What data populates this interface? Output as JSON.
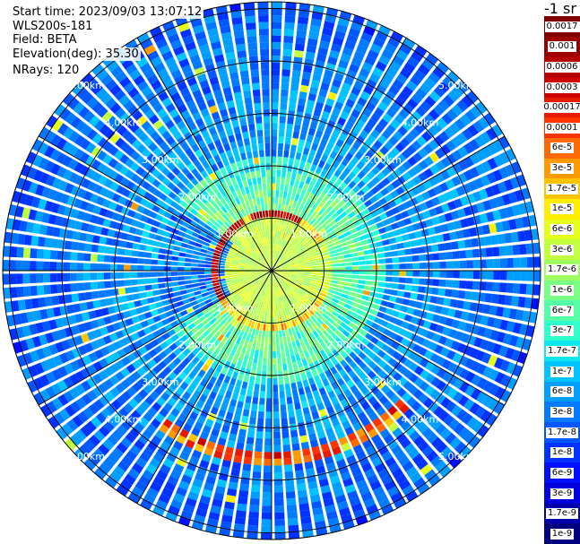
{
  "header": {
    "start_time": "Start time: 2023/09/03 13:07:12",
    "instrument": "WLS200s-181",
    "field": "Field: BETA",
    "elevation": "Elevation(deg): 35.30",
    "nrays": "NRays: 120"
  },
  "colorbar": {
    "units_label": "-1 sr",
    "levels": [
      {
        "label": "0.0017",
        "color": "#800000"
      },
      {
        "label": "0.001",
        "color": "#9a0000"
      },
      {
        "label": "0.0006",
        "color": "#b30000"
      },
      {
        "label": "0.0003",
        "color": "#cc0000"
      },
      {
        "label": "0.00017",
        "color": "#e51a00"
      },
      {
        "label": "0.0001",
        "color": "#ff3300"
      },
      {
        "label": "6e-5",
        "color": "#ff6a00"
      },
      {
        "label": "3e-5",
        "color": "#ff9900"
      },
      {
        "label": "1.7e-5",
        "color": "#ffc400"
      },
      {
        "label": "1e-5",
        "color": "#ffee00"
      },
      {
        "label": "6e-6",
        "color": "#e6ff1a"
      },
      {
        "label": "3e-6",
        "color": "#c2ff3c"
      },
      {
        "label": "1.7e-6",
        "color": "#9dff60"
      },
      {
        "label": "1e-6",
        "color": "#79ff84"
      },
      {
        "label": "6e-7",
        "color": "#55ffa8"
      },
      {
        "label": "3e-7",
        "color": "#31ffcc"
      },
      {
        "label": "1.7e-7",
        "color": "#0de8f0"
      },
      {
        "label": "1e-7",
        "color": "#00c4ff"
      },
      {
        "label": "6e-8",
        "color": "#009fff"
      },
      {
        "label": "3e-8",
        "color": "#007bff"
      },
      {
        "label": "1.7e-8",
        "color": "#0057ff"
      },
      {
        "label": "1e-8",
        "color": "#0033ff"
      },
      {
        "label": "6e-9",
        "color": "#000fff"
      },
      {
        "label": "3e-9",
        "color": "#0000dd"
      },
      {
        "label": "1.7e-9",
        "color": "#0000aa"
      },
      {
        "label": "1e-9",
        "color": "#000080"
      }
    ]
  },
  "chart_data": {
    "type": "heatmap",
    "projection": "polar PPI scan",
    "scale": "log",
    "nrays": 120,
    "range_rings_km": [
      1,
      2,
      3,
      4,
      5
    ],
    "range_ring_labels": [
      "1.00km",
      "2.00km",
      "3.00km",
      "4.00km",
      "5.00km"
    ],
    "features": [
      {
        "description": "boundary-layer top aerosol ring",
        "range_km": 1.1,
        "max_value": "0.0017"
      },
      {
        "description": "elevated aerosol layer arc (south)",
        "range_km": 3.6,
        "max_value": "0.0003"
      }
    ]
  }
}
